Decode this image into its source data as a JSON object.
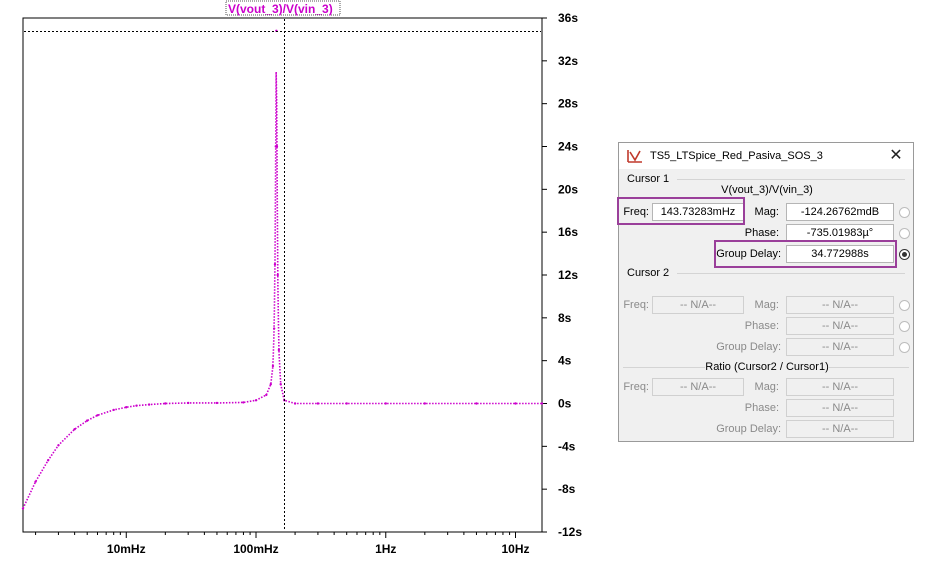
{
  "plot": {
    "trace_label": "V(vout_3)/V(vin_3)",
    "y_ticks": [
      "36s",
      "32s",
      "28s",
      "24s",
      "20s",
      "16s",
      "12s",
      "8s",
      "4s",
      "0s",
      "-4s",
      "-8s",
      "-12s"
    ],
    "x_ticks": [
      "10mHz",
      "100mHz",
      "1Hz",
      "10Hz"
    ],
    "trace_color": "#cc00cc"
  },
  "chart_data": {
    "type": "line",
    "xlabel": "",
    "ylabel": "",
    "x_scale": "log",
    "xlim": [
      "1.6mHz",
      "16Hz"
    ],
    "ylim": [
      -12,
      36
    ],
    "y_ticks": [
      36,
      32,
      28,
      24,
      20,
      16,
      12,
      8,
      4,
      0,
      -4,
      -8,
      -12
    ],
    "x_ticks": [
      "10mHz",
      "100mHz",
      "1Hz",
      "10Hz"
    ],
    "series": [
      {
        "name": "V(vout_3)/V(vin_3)",
        "x_hz": [
          0.0016,
          0.002,
          0.0025,
          0.003,
          0.004,
          0.005,
          0.006,
          0.008,
          0.01,
          0.012,
          0.015,
          0.02,
          0.03,
          0.05,
          0.08,
          0.1,
          0.12,
          0.13,
          0.135,
          0.138,
          0.14,
          0.142,
          0.1435,
          0.145,
          0.147,
          0.15,
          0.155,
          0.165,
          0.2,
          0.3,
          0.5,
          1,
          2,
          5,
          10,
          16
        ],
        "group_delay_s": [
          -9.8,
          -7.3,
          -5.3,
          -3.9,
          -2.4,
          -1.6,
          -1.1,
          -0.6,
          -0.35,
          -0.2,
          -0.1,
          0,
          0.05,
          0.05,
          0.1,
          0.3,
          0.8,
          1.8,
          3.5,
          7,
          13,
          24,
          34.8,
          24,
          12,
          5,
          1.8,
          0.3,
          0,
          0,
          0,
          0,
          0,
          0,
          0,
          0
        ]
      }
    ],
    "cursor": {
      "x_hz": 0.14373283,
      "y_s": 34.772988
    }
  },
  "dialog": {
    "title": "TS5_LTSpice_Red_Pasiva_SOS_3",
    "cursor1": {
      "group_label": "Cursor 1",
      "trace": "V(vout_3)/V(vin_3)",
      "freq_label": "Freq:",
      "freq_value": "143.73283mHz",
      "mag_label": "Mag:",
      "mag_value": "-124.26762mdB",
      "phase_label": "Phase:",
      "phase_value": "-735.01983µ°",
      "gd_label": "Group Delay:",
      "gd_value": "34.772988s"
    },
    "cursor2": {
      "group_label": "Cursor 2",
      "freq_label": "Freq:",
      "freq_value": "-- N/A--",
      "mag_label": "Mag:",
      "mag_value": "-- N/A--",
      "phase_label": "Phase:",
      "phase_value": "-- N/A--",
      "gd_label": "Group Delay:",
      "gd_value": "-- N/A--"
    },
    "ratio": {
      "group_label": "Ratio (Cursor2 / Cursor1)",
      "freq_label": "Freq:",
      "freq_value": "-- N/A--",
      "mag_label": "Mag:",
      "mag_value": "-- N/A--",
      "phase_label": "Phase:",
      "phase_value": "-- N/A--",
      "gd_label": "Group Delay:",
      "gd_value": "-- N/A--"
    }
  }
}
